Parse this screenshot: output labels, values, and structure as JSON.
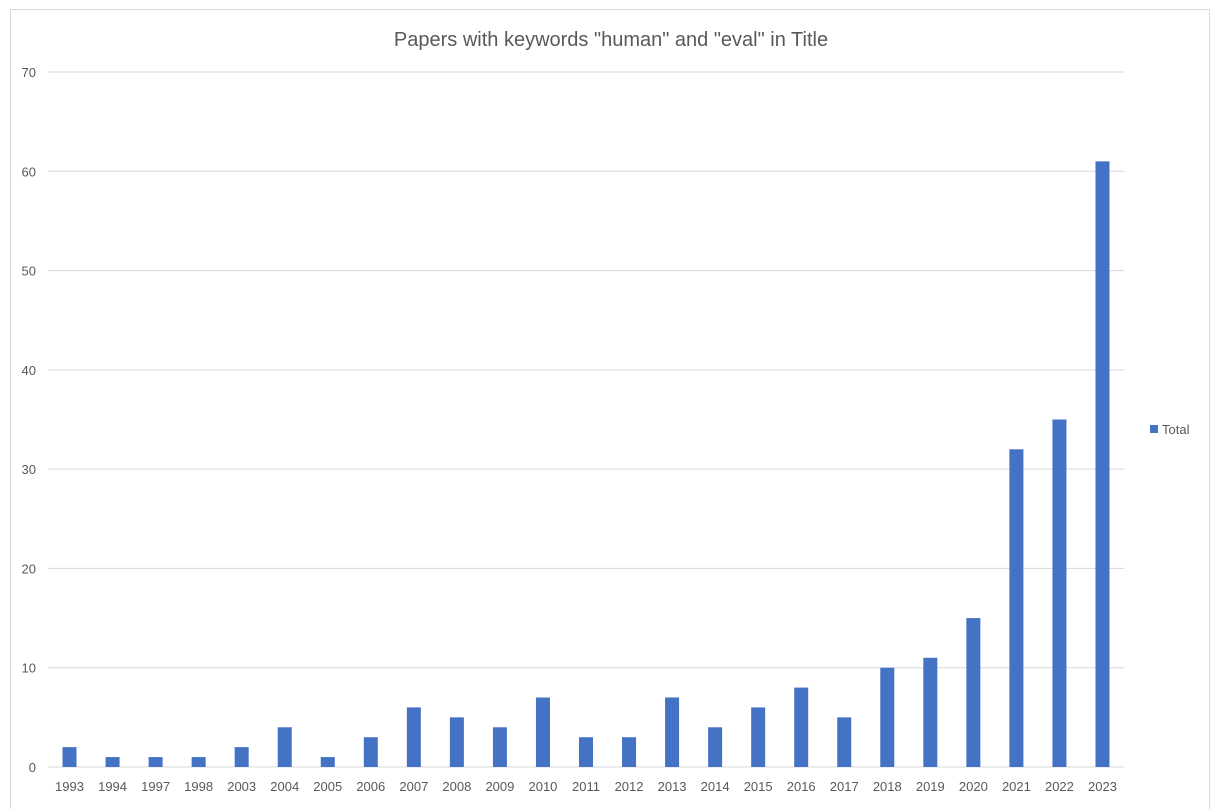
{
  "chart_data": {
    "type": "bar",
    "title": "Papers with keywords \"human\" and \"eval\" in Title",
    "xlabel": "",
    "ylabel": "",
    "ylim": [
      0,
      70
    ],
    "yticks": [
      0,
      10,
      20,
      30,
      40,
      50,
      60,
      70
    ],
    "grid": true,
    "legend_position": "right",
    "categories": [
      "1993",
      "1994",
      "1997",
      "1998",
      "2003",
      "2004",
      "2005",
      "2006",
      "2007",
      "2008",
      "2009",
      "2010",
      "2011",
      "2012",
      "2013",
      "2014",
      "2015",
      "2016",
      "2017",
      "2018",
      "2019",
      "2020",
      "2021",
      "2022",
      "2023"
    ],
    "series": [
      {
        "name": "Total",
        "color": "#4472c4",
        "values": [
          2,
          1,
          1,
          1,
          2,
          4,
          1,
          3,
          6,
          5,
          4,
          7,
          3,
          3,
          7,
          4,
          6,
          8,
          5,
          10,
          11,
          15,
          32,
          35,
          61
        ]
      }
    ]
  }
}
